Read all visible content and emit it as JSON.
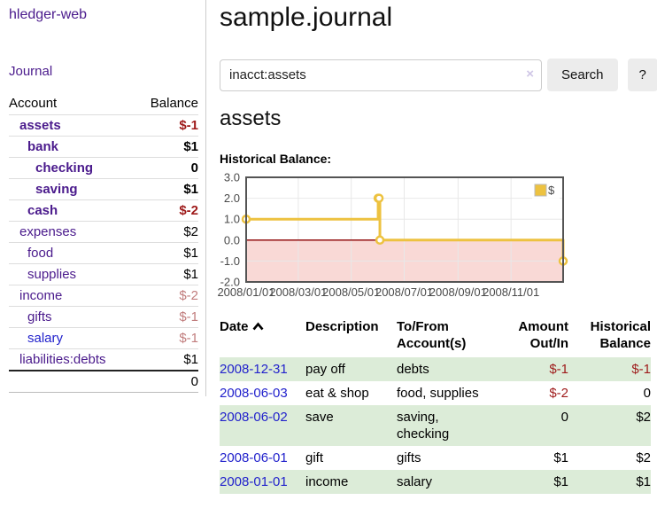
{
  "app": {
    "brand": "hledger-web",
    "nav_journal": "Journal"
  },
  "sidebar": {
    "accounts_header": {
      "account": "Account",
      "balance": "Balance"
    },
    "accounts": [
      {
        "name": "assets",
        "balance": "$-1"
      },
      {
        "name": "bank",
        "balance": "$1"
      },
      {
        "name": "checking",
        "balance": "0"
      },
      {
        "name": "saving",
        "balance": "$1"
      },
      {
        "name": "cash",
        "balance": "$-2"
      },
      {
        "name": "expenses",
        "balance": "$2"
      },
      {
        "name": "food",
        "balance": "$1"
      },
      {
        "name": "supplies",
        "balance": "$1"
      },
      {
        "name": "income",
        "balance": "$-2"
      },
      {
        "name": "gifts",
        "balance": "$-1"
      },
      {
        "name": "salary",
        "balance": "$-1"
      },
      {
        "name": "liabilities:debts",
        "balance": "$1"
      }
    ],
    "total": "0"
  },
  "header": {
    "title": "sample.journal"
  },
  "search": {
    "value": "inacct:assets",
    "clear_icon": "×",
    "button": "Search",
    "help_button": "?"
  },
  "account_view": {
    "title": "assets",
    "chart_label": "Historical Balance:"
  },
  "chart_data": {
    "type": "line",
    "step": true,
    "title": "Historical Balance:",
    "series": [
      {
        "name": "$",
        "points": [
          {
            "date": "2008-01-01",
            "value": 1
          },
          {
            "date": "2008-06-01",
            "value": 2
          },
          {
            "date": "2008-06-02",
            "value": 2
          },
          {
            "date": "2008-06-03",
            "value": 0
          },
          {
            "date": "2008-12-31",
            "value": -1
          }
        ]
      }
    ],
    "x_min": "2008-01-01",
    "x_max": "2008-12-31",
    "ylim": [
      -2,
      3
    ],
    "y_ticks": [
      {
        "v": 3,
        "label": "3.0"
      },
      {
        "v": 2,
        "label": "2.0"
      },
      {
        "v": 1,
        "label": "1.0"
      },
      {
        "v": 0,
        "label": "0.0"
      },
      {
        "v": -1,
        "label": "-1.0"
      },
      {
        "v": -2,
        "label": "-2.0"
      }
    ],
    "x_ticks": [
      {
        "date": "2008-01-01",
        "label": "2008/01/01"
      },
      {
        "date": "2008-03-01",
        "label": "2008/03/01"
      },
      {
        "date": "2008-05-01",
        "label": "2008/05/01"
      },
      {
        "date": "2008-07-01",
        "label": "2008/07/01"
      },
      {
        "date": "2008-09-01",
        "label": "2008/09/01"
      },
      {
        "date": "2008-11-01",
        "label": "2008/11/01"
      }
    ],
    "legend_position": "top-right",
    "grid": true,
    "colors": {
      "line": "#edc240",
      "marker_fill": "#ffffff",
      "negative_region": "#f9d9d6",
      "zero_line": "#8b0000",
      "grid": "#e8e8e8",
      "border": "#545454",
      "axis_text": "#4a4a4a"
    }
  },
  "register": {
    "columns": [
      "Date",
      "Description",
      "To/From Account(s)",
      "Amount Out/In",
      "Historical Balance"
    ],
    "rows": [
      {
        "date": "2008-12-31",
        "description": "pay off",
        "to_from": "debts",
        "amount": "$-1",
        "historical": "$-1"
      },
      {
        "date": "2008-06-03",
        "description": "eat & shop",
        "to_from": "food, supplies",
        "amount": "$-2",
        "historical": "0"
      },
      {
        "date": "2008-06-02",
        "description": "save",
        "to_from": "saving,\nchecking",
        "amount": "0",
        "historical": "$2"
      },
      {
        "date": "2008-06-01",
        "description": "gift",
        "to_from": "gifts",
        "amount": "$1",
        "historical": "$2"
      },
      {
        "date": "2008-01-01",
        "description": "income",
        "to_from": "salary",
        "amount": "$1",
        "historical": "$1"
      }
    ]
  },
  "colors": {
    "link_purple": "#4a1a8c",
    "link_blue": "#2222cc",
    "negative_strong": "#9e1a1a",
    "negative_muted": "#c17d7d",
    "row_shade_green": "#dcecd8",
    "button_bg": "#ececec"
  }
}
